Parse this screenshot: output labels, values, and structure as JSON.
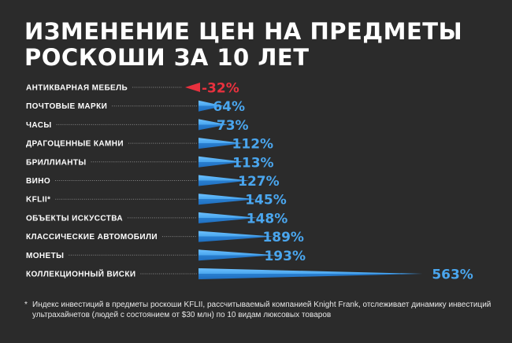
{
  "title": {
    "line1": "ИЗМЕНЕНИЕ ЦЕН НА ПРЕДМЕТЫ",
    "line2": "РОСКОШИ ЗА 10 ЛЕТ"
  },
  "chart_data": {
    "type": "bar",
    "orientation": "horizontal",
    "categories": [
      "АНТИКВАРНАЯ МЕБЕЛЬ",
      "ПОЧТОВЫЕ МАРКИ",
      "ЧАСЫ",
      "ДРАГОЦЕННЫЕ КАМНИ",
      "БРИЛЛИАНТЫ",
      "ВИНО",
      "KFLII*",
      "ОБЪЕКТЫ ИСКУССТВА",
      "КЛАССИЧЕСКИЕ АВТОМОБИЛИ",
      "МОНЕТЫ",
      "КОЛЛЕКЦИОННЫЙ ВИСКИ"
    ],
    "values": [
      -32,
      64,
      73,
      112,
      113,
      127,
      145,
      148,
      189,
      193,
      563
    ],
    "value_labels": [
      "-32%",
      "64%",
      "73%",
      "112%",
      "113%",
      "127%",
      "145%",
      "148%",
      "189%",
      "193%",
      "563%"
    ],
    "colors": {
      "positive": "#4aa6ee",
      "positive_dark": "#1f6fc0",
      "negative": "#e8313e",
      "label": "#ffffff",
      "leader": "#8a8a8a"
    }
  },
  "footnote": {
    "mark": "*",
    "text": "Индекс инвестиций в предметы роскоши KFLII, рассчитываемый компанией Knight Frank, отслеживает динамику инвестиций ультрахайнетов (людей с состоянием от $30 млн) по 10 видам люксовых товаров"
  }
}
